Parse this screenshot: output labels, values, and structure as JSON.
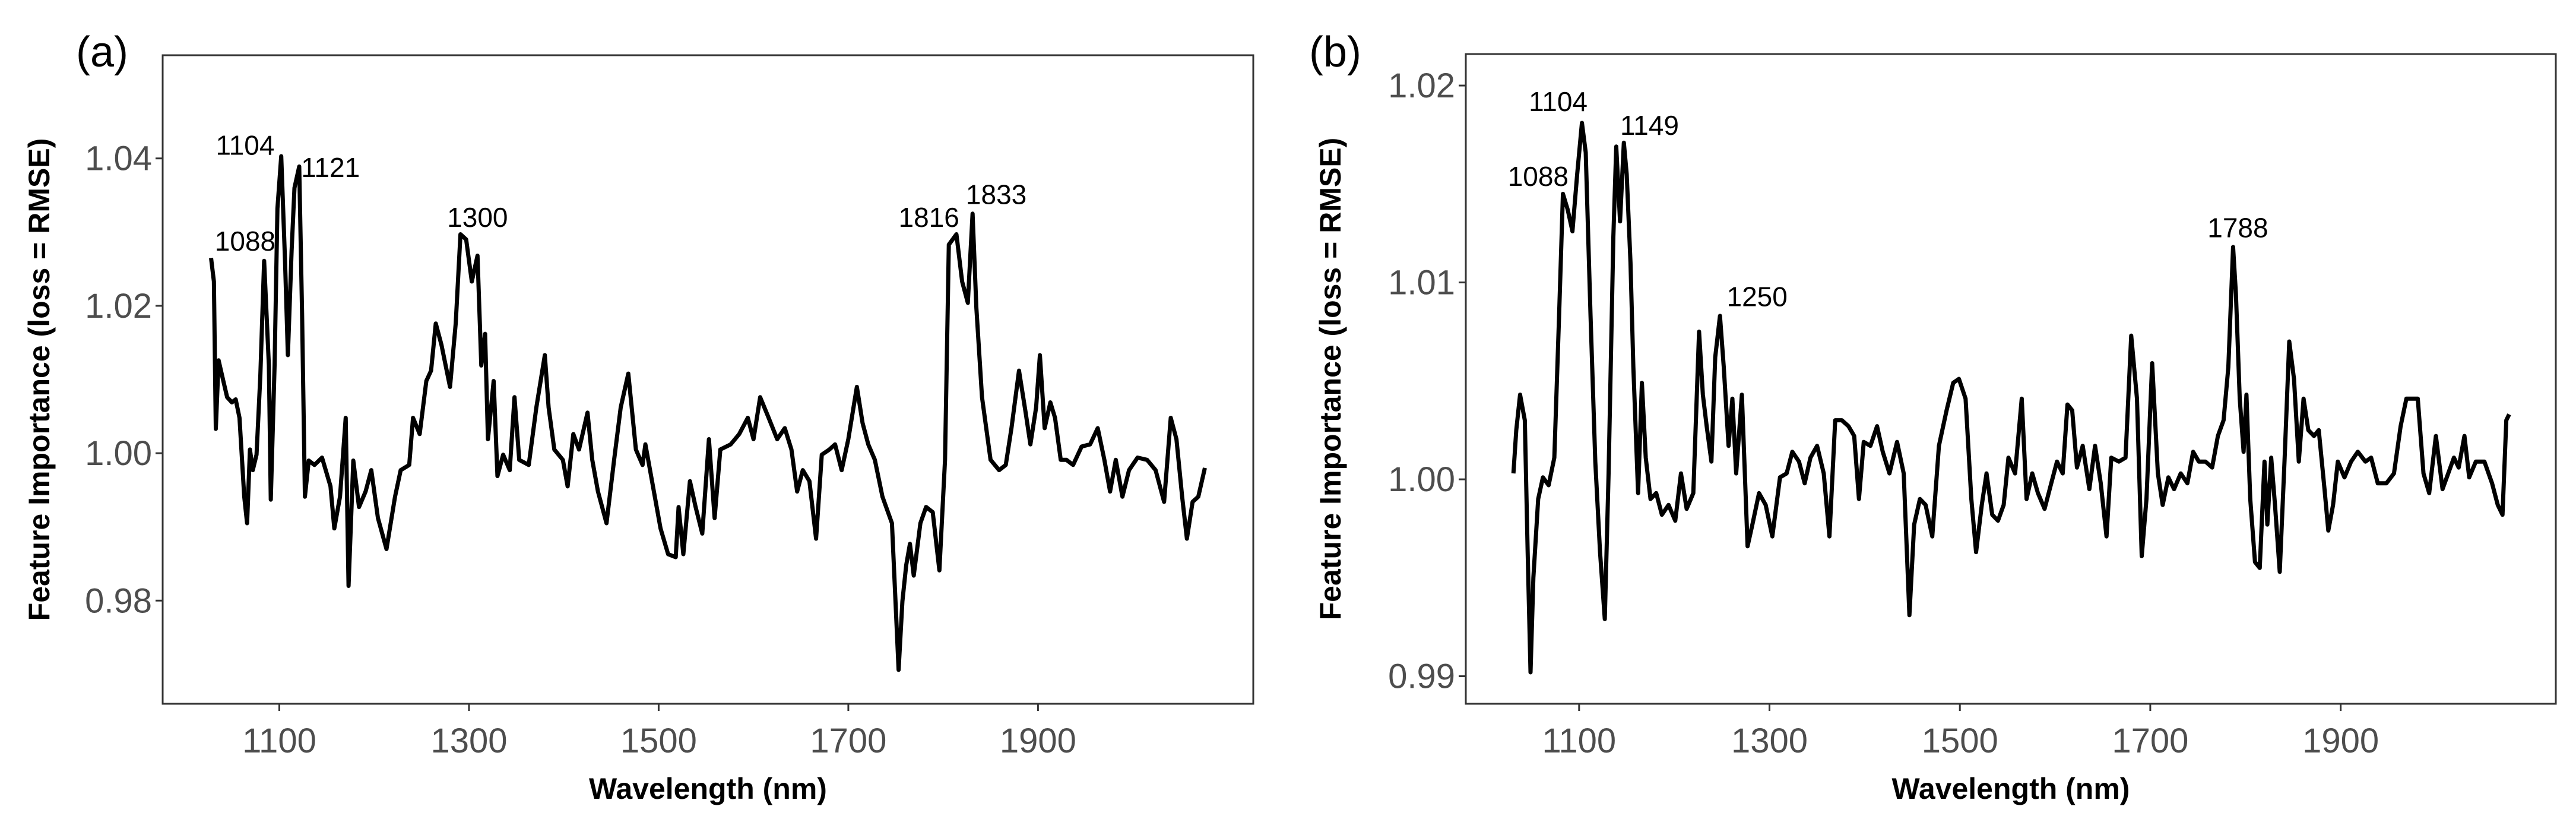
{
  "chart_data": [
    {
      "type": "line",
      "panel_label": "(a)",
      "xlabel": "Wavelength (nm)",
      "ylabel": "Feature Importance (loss = RMSE)",
      "xlim": [
        977,
        2127
      ],
      "ylim": [
        0.966,
        1.054
      ],
      "xticks": [
        1100,
        1300,
        1500,
        1700,
        1900
      ],
      "xtick_labels": [
        "1100",
        "1300",
        "1500",
        "1700",
        "1900"
      ],
      "yticks": [
        0.98,
        1.0,
        1.02,
        1.04
      ],
      "ytick_labels": [
        "0.98",
        "1.00",
        "1.02",
        "1.04"
      ],
      "grid": false,
      "line_color": "#000000",
      "x": [
        1028,
        1031,
        1033,
        1036,
        1041,
        1045,
        1050,
        1054,
        1058,
        1063,
        1066,
        1069,
        1072,
        1076,
        1080,
        1084,
        1089,
        1091,
        1095,
        1098,
        1102,
        1106,
        1109,
        1113,
        1116,
        1121,
        1124,
        1127,
        1131,
        1137,
        1145,
        1154,
        1158,
        1164,
        1170,
        1173,
        1178,
        1184,
        1191,
        1197,
        1204,
        1213,
        1222,
        1228,
        1237,
        1241,
        1248,
        1255,
        1260,
        1265,
        1271,
        1280,
        1286,
        1291,
        1297,
        1303,
        1309,
        1313,
        1317,
        1320,
        1326,
        1330,
        1336,
        1343,
        1348,
        1353,
        1363,
        1371,
        1380,
        1384,
        1390,
        1399,
        1404,
        1410,
        1416,
        1425,
        1430,
        1436,
        1445,
        1453,
        1460,
        1468,
        1476,
        1483,
        1486,
        1493,
        1502,
        1510,
        1518,
        1521,
        1526,
        1533,
        1539,
        1546,
        1553,
        1559,
        1565,
        1576,
        1585,
        1594,
        1600,
        1607,
        1616,
        1625,
        1633,
        1640,
        1646,
        1652,
        1659,
        1666,
        1672,
        1680,
        1686,
        1693,
        1700,
        1709,
        1715,
        1721,
        1728,
        1736,
        1746,
        1753,
        1757,
        1761,
        1765,
        1769,
        1776,
        1782,
        1789,
        1796,
        1802,
        1806,
        1814,
        1820,
        1826,
        1831,
        1835,
        1841,
        1850,
        1859,
        1866,
        1872,
        1880,
        1887,
        1892,
        1898,
        1902,
        1907,
        1913,
        1918,
        1924,
        1930,
        1937,
        1946,
        1955,
        1963,
        1970,
        1976,
        1982,
        1989,
        1996,
        2005,
        2015,
        2024,
        2033,
        2040,
        2046,
        2052,
        2057,
        2063,
        2069,
        2076
      ],
      "y": [
        1.0265,
        1.0233,
        1.0033,
        1.0126,
        1.0098,
        1.0076,
        1.0069,
        1.0073,
        1.0048,
        0.9941,
        0.9905,
        1.0005,
        0.9977,
        0.9998,
        1.0105,
        1.0261,
        1.0119,
        0.9937,
        1.0119,
        1.0332,
        1.0403,
        1.0261,
        1.0133,
        1.0275,
        1.036,
        1.0389,
        1.019,
        0.9941,
        0.999,
        0.9984,
        0.9994,
        0.9955,
        0.9898,
        0.9941,
        1.0048,
        0.982,
        0.999,
        0.9927,
        0.9948,
        0.9977,
        0.9912,
        0.987,
        0.9941,
        0.9977,
        0.9984,
        1.0048,
        1.0026,
        1.0098,
        1.0112,
        1.0176,
        1.0147,
        1.009,
        1.0176,
        1.0297,
        1.029,
        1.0233,
        1.0268,
        1.0119,
        1.0162,
        1.0019,
        1.0098,
        0.9969,
        0.9998,
        0.9977,
        1.0076,
        0.9991,
        0.9984,
        1.0062,
        1.0133,
        1.0062,
        1.0005,
        0.9991,
        0.9955,
        1.0026,
        1.0005,
        1.0055,
        0.9991,
        0.9948,
        0.9905,
        0.9991,
        1.0062,
        1.0108,
        1.0005,
        0.9984,
        1.0012,
        0.9962,
        0.9898,
        0.9863,
        0.9859,
        0.9927,
        0.9863,
        0.9962,
        0.9927,
        0.9891,
        1.0019,
        0.9912,
        1.0005,
        1.0012,
        1.0026,
        1.0048,
        1.0019,
        1.0076,
        1.0048,
        1.0019,
        1.0034,
        1.0005,
        0.9948,
        0.9977,
        0.9962,
        0.9884,
        0.9998,
        1.0005,
        1.0012,
        0.9977,
        1.0019,
        1.009,
        1.0041,
        1.0012,
        0.9991,
        0.9941,
        0.9905,
        0.9706,
        0.9799,
        0.9848,
        0.9877,
        0.9834,
        0.9905,
        0.9927,
        0.992,
        0.9841,
        0.9991,
        1.0283,
        1.0297,
        1.0233,
        1.0204,
        1.0325,
        1.0197,
        1.0076,
        0.9991,
        0.9977,
        0.9984,
        1.0034,
        1.0112,
        1.0055,
        1.0012,
        1.0062,
        1.0133,
        1.0034,
        1.0069,
        1.0048,
        0.9991,
        0.9991,
        0.9984,
        1.0009,
        1.0012,
        1.0034,
        0.9991,
        0.9948,
        0.9991,
        0.9941,
        0.9977,
        0.9994,
        0.9991,
        0.9977,
        0.9934,
        1.0048,
        1.0019,
        0.9941,
        0.9884,
        0.9934,
        0.9941,
        0.998
      ],
      "annotations": [
        {
          "text": "1104",
          "x": 1064,
          "y": 1.0405
        },
        {
          "text": "1121",
          "x": 1154,
          "y": 1.0375
        },
        {
          "text": "1088",
          "x": 1064,
          "y": 1.0275
        },
        {
          "text": "1300",
          "x": 1309,
          "y": 1.0307
        },
        {
          "text": "1816",
          "x": 1785,
          "y": 1.0307
        },
        {
          "text": "1833",
          "x": 1856,
          "y": 1.0338
        }
      ]
    },
    {
      "type": "line",
      "panel_label": "(b)",
      "xlabel": "Wavelength (nm)",
      "ylabel": "Feature Importance (loss = RMSE)",
      "xlim": [
        981,
        2126
      ],
      "ylim": [
        0.9886,
        1.0216
      ],
      "xticks": [
        1100,
        1300,
        1500,
        1700,
        1900
      ],
      "xtick_labels": [
        "1100",
        "1300",
        "1500",
        "1700",
        "1900"
      ],
      "yticks": [
        0.99,
        1.0,
        1.01,
        1.02
      ],
      "ytick_labels": [
        "0.99",
        "1.00",
        "1.01",
        "1.02"
      ],
      "grid": false,
      "line_color": "#000000",
      "x": [
        1031,
        1034,
        1038,
        1043,
        1046,
        1049,
        1052,
        1057,
        1062,
        1068,
        1074,
        1079,
        1083,
        1088,
        1093,
        1098,
        1103,
        1107,
        1112,
        1117,
        1122,
        1127,
        1131,
        1136,
        1139,
        1143,
        1147,
        1150,
        1154,
        1157,
        1162,
        1166,
        1170,
        1175,
        1181,
        1187,
        1194,
        1201,
        1207,
        1213,
        1220,
        1226,
        1230,
        1234,
        1239,
        1243,
        1248,
        1252,
        1257,
        1261,
        1265,
        1271,
        1277,
        1282,
        1289,
        1296,
        1303,
        1311,
        1318,
        1324,
        1331,
        1337,
        1343,
        1350,
        1357,
        1363,
        1369,
        1376,
        1383,
        1389,
        1394,
        1399,
        1406,
        1413,
        1419,
        1426,
        1434,
        1441,
        1447,
        1452,
        1458,
        1464,
        1471,
        1478,
        1486,
        1493,
        1499,
        1506,
        1512,
        1517,
        1523,
        1528,
        1534,
        1540,
        1546,
        1551,
        1558,
        1565,
        1570,
        1576,
        1582,
        1589,
        1596,
        1602,
        1608,
        1613,
        1618,
        1623,
        1629,
        1636,
        1642,
        1648,
        1654,
        1659,
        1667,
        1674,
        1680,
        1686,
        1691,
        1696,
        1702,
        1708,
        1713,
        1719,
        1725,
        1732,
        1739,
        1745,
        1751,
        1758,
        1765,
        1771,
        1777,
        1782,
        1787,
        1790,
        1794,
        1798,
        1801,
        1805,
        1810,
        1815,
        1820,
        1823,
        1827,
        1831,
        1836,
        1841,
        1846,
        1851,
        1856,
        1861,
        1866,
        1872,
        1877,
        1883,
        1887,
        1892,
        1897,
        1904,
        1911,
        1918,
        1926,
        1932,
        1939,
        1948,
        1956,
        1963,
        1969,
        1975,
        1981,
        1987,
        1993,
        2000,
        2007,
        2013,
        2019,
        2024,
        2030,
        2035,
        2042,
        2051,
        2059,
        2065,
        2070,
        2074,
        2077
      ],
      "y": [
        1.0003,
        1.0025,
        1.0043,
        1.003,
        0.9963,
        0.9902,
        0.995,
        0.999,
        1.0001,
        0.9997,
        1.0011,
        1.0083,
        1.0145,
        1.0137,
        1.0126,
        1.0155,
        1.0181,
        1.0166,
        1.0083,
        1.0009,
        0.9963,
        0.9929,
        1.0003,
        1.0123,
        1.0169,
        1.0131,
        1.0171,
        1.0155,
        1.011,
        1.0057,
        0.9993,
        1.0049,
        1.0011,
        0.999,
        0.9993,
        0.9982,
        0.9987,
        0.9979,
        1.0003,
        0.9985,
        0.9993,
        1.0075,
        1.0043,
        1.0027,
        1.0009,
        1.0062,
        1.0083,
        1.0057,
        1.0017,
        1.0041,
        1.0003,
        1.0043,
        0.9966,
        0.9977,
        0.9993,
        0.9987,
        0.9971,
        1.0001,
        1.0003,
        1.0014,
        1.0009,
        0.9998,
        1.0011,
        1.0017,
        1.0003,
        0.9971,
        1.003,
        1.003,
        1.0027,
        1.0022,
        0.999,
        1.0019,
        1.0017,
        1.0027,
        1.0014,
        1.0003,
        1.0019,
        1.0003,
        0.9931,
        0.9977,
        0.999,
        0.9987,
        0.9971,
        1.0017,
        1.0035,
        1.0049,
        1.0051,
        1.0041,
        0.999,
        0.9963,
        0.9987,
        1.0003,
        0.9982,
        0.9979,
        0.9987,
        1.0011,
        1.0003,
        1.0041,
        0.999,
        1.0003,
        0.9993,
        0.9985,
        0.9998,
        1.0009,
        1.0003,
        1.0038,
        1.0035,
        1.0006,
        1.0017,
        0.9995,
        1.0017,
        0.9998,
        0.9971,
        1.0011,
        1.0009,
        1.0011,
        1.0073,
        1.0041,
        0.9961,
        0.999,
        1.0059,
        1.0003,
        0.9987,
        1.0001,
        0.9995,
        1.0003,
        0.9998,
        1.0014,
        1.0009,
        1.0009,
        1.0006,
        1.0022,
        1.003,
        1.0057,
        1.0118,
        1.0094,
        1.0041,
        1.0014,
        1.0043,
        0.999,
        0.9958,
        0.9955,
        1.0009,
        0.9977,
        1.0011,
        0.9987,
        0.9953,
        1.0009,
        1.007,
        1.0051,
        1.0009,
        1.0041,
        1.0025,
        1.0022,
        1.0025,
        0.9995,
        0.9974,
        0.9987,
        1.0009,
        1.0001,
        1.0009,
        1.0014,
        1.0009,
        1.0011,
        0.9998,
        0.9998,
        1.0003,
        1.0027,
        1.0041,
        1.0041,
        1.0041,
        1.0003,
        0.9993,
        1.0022,
        0.9995,
        1.0003,
        1.0011,
        1.0006,
        1.0022,
        1.0001,
        1.0009,
        1.0009,
        0.9998,
        0.9987,
        0.9982,
        1.003,
        1.0033
      ],
      "annotations": [
        {
          "text": "1104",
          "x": 1078,
          "y": 1.0187
        },
        {
          "text": "1149",
          "x": 1174,
          "y": 1.0175
        },
        {
          "text": "1088",
          "x": 1057,
          "y": 1.0149
        },
        {
          "text": "1250",
          "x": 1287,
          "y": 1.0088
        },
        {
          "text": "1788",
          "x": 1792,
          "y": 1.0123
        }
      ]
    }
  ]
}
